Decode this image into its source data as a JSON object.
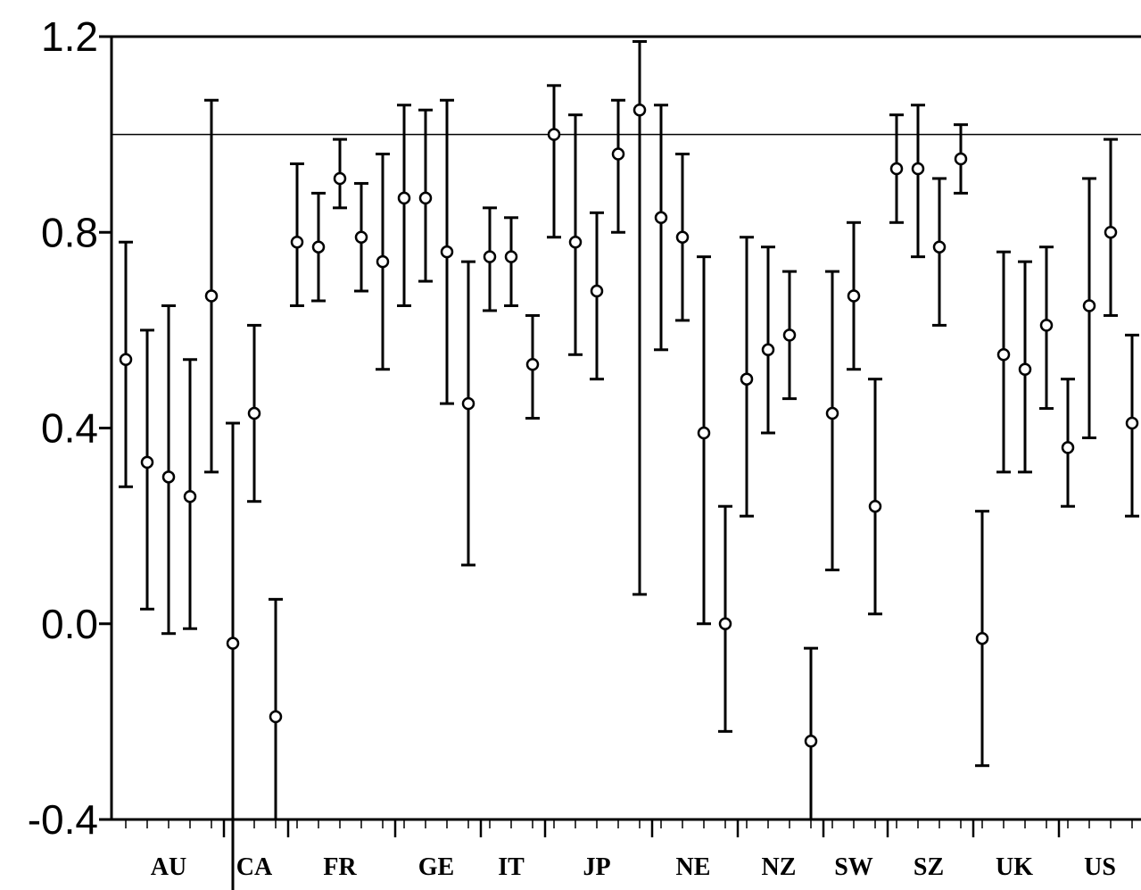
{
  "chart_data": {
    "type": "errorbar",
    "title": "",
    "xlabel": "",
    "ylabel": "",
    "ylim": [
      -0.4,
      1.2
    ],
    "y_tick_values": [
      -0.4,
      0.0,
      0.4,
      0.8,
      1.2
    ],
    "y_tick_labels": [
      "-0.4",
      "0.0",
      "0.4",
      "0.8",
      "1.2"
    ],
    "reference_line": 1.0,
    "categories": [
      "AU",
      "CA",
      "FR",
      "GE",
      "IT",
      "JP",
      "NE",
      "NZ",
      "SW",
      "SZ",
      "UK",
      "US"
    ],
    "points": [
      {
        "group": "AU",
        "value": 0.54,
        "low": 0.28,
        "high": 0.78
      },
      {
        "group": "AU",
        "value": 0.33,
        "low": 0.03,
        "high": 0.6
      },
      {
        "group": "AU",
        "value": 0.3,
        "low": -0.02,
        "high": 0.65
      },
      {
        "group": "AU",
        "value": 0.26,
        "low": -0.01,
        "high": 0.54
      },
      {
        "group": "AU",
        "value": 0.67,
        "low": 0.31,
        "high": 1.07
      },
      {
        "group": "CA",
        "value": -0.04,
        "low": -0.5,
        "high": 0.41
      },
      {
        "group": "CA",
        "value": 0.43,
        "low": 0.25,
        "high": 0.61
      },
      {
        "group": "CA",
        "value": -0.19,
        "low": -0.4,
        "high": 0.05
      },
      {
        "group": "FR",
        "value": 0.78,
        "low": 0.65,
        "high": 0.94
      },
      {
        "group": "FR",
        "value": 0.77,
        "low": 0.66,
        "high": 0.88
      },
      {
        "group": "FR",
        "value": 0.91,
        "low": 0.85,
        "high": 0.99
      },
      {
        "group": "FR",
        "value": 0.79,
        "low": 0.68,
        "high": 0.9
      },
      {
        "group": "FR",
        "value": 0.74,
        "low": 0.52,
        "high": 0.96
      },
      {
        "group": "GE",
        "value": 0.87,
        "low": 0.65,
        "high": 1.06
      },
      {
        "group": "GE",
        "value": 0.87,
        "low": 0.7,
        "high": 1.05
      },
      {
        "group": "GE",
        "value": 0.76,
        "low": 0.45,
        "high": 1.07
      },
      {
        "group": "GE",
        "value": 0.45,
        "low": 0.12,
        "high": 0.74
      },
      {
        "group": "IT",
        "value": 0.75,
        "low": 0.64,
        "high": 0.85
      },
      {
        "group": "IT",
        "value": 0.75,
        "low": 0.65,
        "high": 0.83
      },
      {
        "group": "IT",
        "value": 0.53,
        "low": 0.42,
        "high": 0.63
      },
      {
        "group": "JP",
        "value": 1.0,
        "low": 0.79,
        "high": 1.1
      },
      {
        "group": "JP",
        "value": 0.78,
        "low": 0.55,
        "high": 1.04
      },
      {
        "group": "JP",
        "value": 0.68,
        "low": 0.5,
        "high": 0.84
      },
      {
        "group": "JP",
        "value": 0.96,
        "low": 0.8,
        "high": 1.07
      },
      {
        "group": "JP",
        "value": 1.05,
        "low": 0.06,
        "high": 1.19
      },
      {
        "group": "NE",
        "value": 0.83,
        "low": 0.56,
        "high": 1.06
      },
      {
        "group": "NE",
        "value": 0.79,
        "low": 0.62,
        "high": 0.96
      },
      {
        "group": "NE",
        "value": 0.39,
        "low": 0.0,
        "high": 0.75
      },
      {
        "group": "NE",
        "value": 0.0,
        "low": -0.22,
        "high": 0.24
      },
      {
        "group": "NZ",
        "value": 0.5,
        "low": 0.22,
        "high": 0.79
      },
      {
        "group": "NZ",
        "value": 0.56,
        "low": 0.39,
        "high": 0.77
      },
      {
        "group": "NZ",
        "value": 0.59,
        "low": 0.46,
        "high": 0.72
      },
      {
        "group": "NZ",
        "value": -0.24,
        "low": -0.4,
        "high": -0.05
      },
      {
        "group": "SW",
        "value": 0.43,
        "low": 0.11,
        "high": 0.72
      },
      {
        "group": "SW",
        "value": 0.67,
        "low": 0.52,
        "high": 0.82
      },
      {
        "group": "SW",
        "value": 0.24,
        "low": 0.02,
        "high": 0.5
      },
      {
        "group": "SZ",
        "value": 0.93,
        "low": 0.82,
        "high": 1.04
      },
      {
        "group": "SZ",
        "value": 0.93,
        "low": 0.75,
        "high": 1.06
      },
      {
        "group": "SZ",
        "value": 0.77,
        "low": 0.61,
        "high": 0.91
      },
      {
        "group": "SZ",
        "value": 0.95,
        "low": 0.88,
        "high": 1.02
      },
      {
        "group": "UK",
        "value": -0.03,
        "low": -0.29,
        "high": 0.23
      },
      {
        "group": "UK",
        "value": 0.55,
        "low": 0.31,
        "high": 0.76
      },
      {
        "group": "UK",
        "value": 0.52,
        "low": 0.31,
        "high": 0.74
      },
      {
        "group": "UK",
        "value": 0.61,
        "low": 0.44,
        "high": 0.77
      },
      {
        "group": "US",
        "value": 0.36,
        "low": 0.24,
        "high": 0.5
      },
      {
        "group": "US",
        "value": 0.65,
        "low": 0.38,
        "high": 0.91
      },
      {
        "group": "US",
        "value": 0.8,
        "low": 0.63,
        "high": 0.99
      },
      {
        "group": "US",
        "value": 0.41,
        "low": 0.22,
        "high": 0.59
      }
    ]
  }
}
